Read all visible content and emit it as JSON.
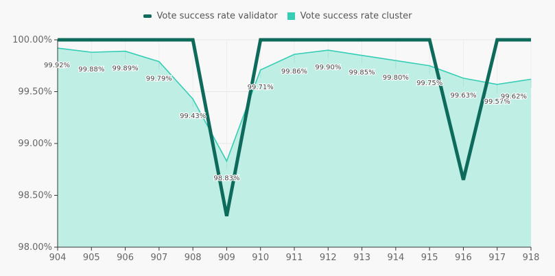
{
  "chart_data": {
    "type": "line",
    "x": [
      "904",
      "905",
      "906",
      "907",
      "908",
      "909",
      "910",
      "911",
      "912",
      "913",
      "914",
      "915",
      "916",
      "917",
      "918"
    ],
    "series": [
      {
        "name": "Vote success rate validator",
        "values": [
          100.0,
          100.0,
          100.0,
          100.0,
          100.0,
          98.3,
          100.0,
          100.0,
          100.0,
          100.0,
          100.0,
          100.0,
          98.65,
          100.0,
          100.0
        ],
        "color": "#0e6b5b"
      },
      {
        "name": "Vote success rate cluster",
        "values": [
          99.92,
          99.88,
          99.89,
          99.79,
          99.43,
          98.83,
          99.71,
          99.86,
          99.9,
          99.85,
          99.8,
          99.75,
          99.63,
          99.57,
          99.62
        ],
        "data_labels": [
          "99.92%",
          "99.88%",
          "99.89%",
          "99.79%",
          "99.43%",
          "98.83%",
          "99.71%",
          "99.86%",
          "99.90%",
          "99.85%",
          "99.80%",
          "99.75%",
          "99.63%",
          "99.57%",
          "99.62%"
        ],
        "color": "#35cdb4",
        "fill_color": "#bfeee5"
      }
    ],
    "y_ticks": [
      "98.00%",
      "98.50%",
      "99.00%",
      "99.50%",
      "100.00%"
    ],
    "y_tick_values": [
      98.0,
      98.5,
      99.0,
      99.5,
      100.0
    ],
    "ylim": [
      98.0,
      100.0
    ],
    "grid": true,
    "legend_position": "top"
  }
}
